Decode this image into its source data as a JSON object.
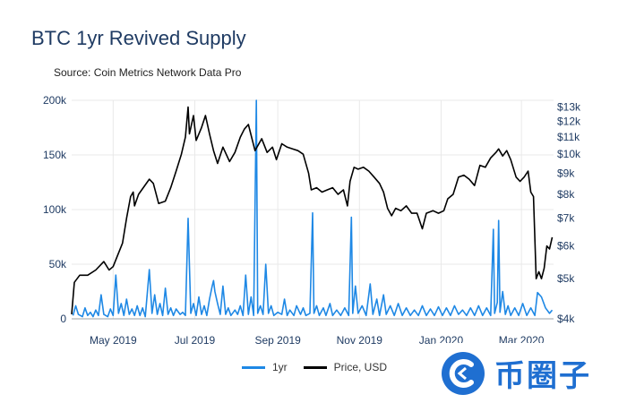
{
  "header": {
    "title": "BTC 1yr Revived Supply",
    "subtitle": "Source: Coin Metrics Network Data Pro"
  },
  "colors": {
    "supply": "#1e88e5",
    "price": "#000000",
    "grid": "#e9e9e9",
    "axis_text": "#1f3b63"
  },
  "watermark": {
    "text": "币圈子",
    "icon": "c-swirl-logo-icon"
  },
  "chart_data": {
    "type": "line",
    "title": "BTC 1yr Revived Supply",
    "x_ticks": [
      "May 2019",
      "Jul 2019",
      "Sep 2019",
      "Nov 2019",
      "Jan 2020",
      "Mar 2020"
    ],
    "x_range": [
      "2019-03-31",
      "2020-03-25"
    ],
    "y_left": {
      "ticks": [
        0,
        50000,
        100000,
        150000,
        200000
      ],
      "tick_labels": [
        "0",
        "50k",
        "100k",
        "150k",
        "200k"
      ],
      "range": [
        0,
        200000
      ]
    },
    "y_right": {
      "scale": "log",
      "ticks": [
        4000,
        5000,
        6000,
        7000,
        8000,
        9000,
        10000,
        11000,
        12000,
        13000
      ],
      "tick_labels": [
        "$4k",
        "$5k",
        "$6k",
        "$7k",
        "$8k",
        "$9k",
        "$10k",
        "$11k",
        "$12k",
        "$13k"
      ],
      "range": [
        4000,
        13500
      ]
    },
    "legend": "bottom",
    "series": [
      {
        "name": "1yr",
        "axis": "left",
        "color": "#1e88e5",
        "points": [
          [
            "2019-04-01",
            3000
          ],
          [
            "2019-04-03",
            12000
          ],
          [
            "2019-04-05",
            4000
          ],
          [
            "2019-04-08",
            2000
          ],
          [
            "2019-04-10",
            10000
          ],
          [
            "2019-04-12",
            3000
          ],
          [
            "2019-04-14",
            6000
          ],
          [
            "2019-04-16",
            2000
          ],
          [
            "2019-04-18",
            8000
          ],
          [
            "2019-04-20",
            3000
          ],
          [
            "2019-04-22",
            22000
          ],
          [
            "2019-04-24",
            4000
          ],
          [
            "2019-04-27",
            2000
          ],
          [
            "2019-04-29",
            9000
          ],
          [
            "2019-05-01",
            3000
          ],
          [
            "2019-05-03",
            40000
          ],
          [
            "2019-05-05",
            5000
          ],
          [
            "2019-05-07",
            14000
          ],
          [
            "2019-05-09",
            3000
          ],
          [
            "2019-05-11",
            18000
          ],
          [
            "2019-05-13",
            4000
          ],
          [
            "2019-05-15",
            9000
          ],
          [
            "2019-05-17",
            3000
          ],
          [
            "2019-05-19",
            12000
          ],
          [
            "2019-05-21",
            3000
          ],
          [
            "2019-05-23",
            10000
          ],
          [
            "2019-05-25",
            2000
          ],
          [
            "2019-05-28",
            45000
          ],
          [
            "2019-05-30",
            5000
          ],
          [
            "2019-06-01",
            22000
          ],
          [
            "2019-06-03",
            4000
          ],
          [
            "2019-06-05",
            14000
          ],
          [
            "2019-06-07",
            3000
          ],
          [
            "2019-06-09",
            28000
          ],
          [
            "2019-06-11",
            4000
          ],
          [
            "2019-06-13",
            10000
          ],
          [
            "2019-06-15",
            3000
          ],
          [
            "2019-06-17",
            9000
          ],
          [
            "2019-06-20",
            4000
          ],
          [
            "2019-06-22",
            6000
          ],
          [
            "2019-06-24",
            3000
          ],
          [
            "2019-06-26",
            92000
          ],
          [
            "2019-06-28",
            5000
          ],
          [
            "2019-06-30",
            14000
          ],
          [
            "2019-07-02",
            3000
          ],
          [
            "2019-07-04",
            20000
          ],
          [
            "2019-07-06",
            4000
          ],
          [
            "2019-07-08",
            12000
          ],
          [
            "2019-07-10",
            3000
          ],
          [
            "2019-07-12",
            18000
          ],
          [
            "2019-07-14",
            30000
          ],
          [
            "2019-07-15",
            35000
          ],
          [
            "2019-07-16",
            25000
          ],
          [
            "2019-07-18",
            14000
          ],
          [
            "2019-07-20",
            4000
          ],
          [
            "2019-07-22",
            30000
          ],
          [
            "2019-07-24",
            4000
          ],
          [
            "2019-07-26",
            10000
          ],
          [
            "2019-07-28",
            3000
          ],
          [
            "2019-07-31",
            8000
          ],
          [
            "2019-08-02",
            4000
          ],
          [
            "2019-08-04",
            12000
          ],
          [
            "2019-08-06",
            3000
          ],
          [
            "2019-08-08",
            40000
          ],
          [
            "2019-08-10",
            4000
          ],
          [
            "2019-08-12",
            20000
          ],
          [
            "2019-08-14",
            3000
          ],
          [
            "2019-08-16",
            200000
          ],
          [
            "2019-08-17",
            5000
          ],
          [
            "2019-08-19",
            12000
          ],
          [
            "2019-08-21",
            4000
          ],
          [
            "2019-08-23",
            50000
          ],
          [
            "2019-08-25",
            5000
          ],
          [
            "2019-08-27",
            12000
          ],
          [
            "2019-08-29",
            3000
          ],
          [
            "2019-09-01",
            6000
          ],
          [
            "2019-09-04",
            4000
          ],
          [
            "2019-09-06",
            18000
          ],
          [
            "2019-09-08",
            3000
          ],
          [
            "2019-09-10",
            8000
          ],
          [
            "2019-09-13",
            3000
          ],
          [
            "2019-09-15",
            12000
          ],
          [
            "2019-09-18",
            4000
          ],
          [
            "2019-09-20",
            10000
          ],
          [
            "2019-09-22",
            3000
          ],
          [
            "2019-09-25",
            5000
          ],
          [
            "2019-09-27",
            97000
          ],
          [
            "2019-09-28",
            5000
          ],
          [
            "2019-09-30",
            12000
          ],
          [
            "2019-10-02",
            3000
          ],
          [
            "2019-10-05",
            10000
          ],
          [
            "2019-10-07",
            3000
          ],
          [
            "2019-10-10",
            14000
          ],
          [
            "2019-10-12",
            3000
          ],
          [
            "2019-10-15",
            8000
          ],
          [
            "2019-10-18",
            3000
          ],
          [
            "2019-10-21",
            10000
          ],
          [
            "2019-10-24",
            3000
          ],
          [
            "2019-10-26",
            93000
          ],
          [
            "2019-10-27",
            5000
          ],
          [
            "2019-10-29",
            30000
          ],
          [
            "2019-10-31",
            5000
          ],
          [
            "2019-11-03",
            12000
          ],
          [
            "2019-11-06",
            3000
          ],
          [
            "2019-11-09",
            32000
          ],
          [
            "2019-11-11",
            4000
          ],
          [
            "2019-11-14",
            18000
          ],
          [
            "2019-11-16",
            3000
          ],
          [
            "2019-11-19",
            22000
          ],
          [
            "2019-11-21",
            4000
          ],
          [
            "2019-11-24",
            12000
          ],
          [
            "2019-11-27",
            3000
          ],
          [
            "2019-11-30",
            14000
          ],
          [
            "2019-12-03",
            3000
          ],
          [
            "2019-12-06",
            10000
          ],
          [
            "2019-12-09",
            3000
          ],
          [
            "2019-12-12",
            8000
          ],
          [
            "2019-12-15",
            3000
          ],
          [
            "2019-12-18",
            12000
          ],
          [
            "2019-12-21",
            3000
          ],
          [
            "2019-12-24",
            9000
          ],
          [
            "2019-12-27",
            3000
          ],
          [
            "2019-12-30",
            11000
          ],
          [
            "2020-01-02",
            3000
          ],
          [
            "2020-01-05",
            10000
          ],
          [
            "2020-01-08",
            3000
          ],
          [
            "2020-01-11",
            12000
          ],
          [
            "2020-01-14",
            4000
          ],
          [
            "2020-01-17",
            8000
          ],
          [
            "2020-01-20",
            3000
          ],
          [
            "2020-01-23",
            10000
          ],
          [
            "2020-01-26",
            3000
          ],
          [
            "2020-01-29",
            12000
          ],
          [
            "2020-02-01",
            3000
          ],
          [
            "2020-02-04",
            10000
          ],
          [
            "2020-02-07",
            3000
          ],
          [
            "2020-02-09",
            82000
          ],
          [
            "2020-02-10",
            5000
          ],
          [
            "2020-02-12",
            15000
          ],
          [
            "2020-02-13",
            90000
          ],
          [
            "2020-02-14",
            6000
          ],
          [
            "2020-02-16",
            25000
          ],
          [
            "2020-02-18",
            4000
          ],
          [
            "2020-02-20",
            12000
          ],
          [
            "2020-02-22",
            3000
          ],
          [
            "2020-02-25",
            10000
          ],
          [
            "2020-02-28",
            3000
          ],
          [
            "2020-03-02",
            14000
          ],
          [
            "2020-03-05",
            3000
          ],
          [
            "2020-03-08",
            10000
          ],
          [
            "2020-03-11",
            3000
          ],
          [
            "2020-03-13",
            24000
          ],
          [
            "2020-03-16",
            20000
          ],
          [
            "2020-03-19",
            10000
          ],
          [
            "2020-03-22",
            5000
          ],
          [
            "2020-03-24",
            8000
          ]
        ]
      },
      {
        "name": "Price, USD",
        "axis": "right",
        "color": "#000000",
        "points": [
          [
            "2019-03-31",
            4100
          ],
          [
            "2019-04-02",
            4900
          ],
          [
            "2019-04-06",
            5100
          ],
          [
            "2019-04-12",
            5100
          ],
          [
            "2019-04-18",
            5250
          ],
          [
            "2019-04-24",
            5500
          ],
          [
            "2019-04-28",
            5250
          ],
          [
            "2019-05-01",
            5350
          ],
          [
            "2019-05-08",
            6100
          ],
          [
            "2019-05-11",
            7000
          ],
          [
            "2019-05-14",
            7900
          ],
          [
            "2019-05-16",
            8100
          ],
          [
            "2019-05-17",
            7500
          ],
          [
            "2019-05-20",
            8000
          ],
          [
            "2019-05-28",
            8700
          ],
          [
            "2019-05-31",
            8500
          ],
          [
            "2019-06-04",
            7600
          ],
          [
            "2019-06-09",
            7700
          ],
          [
            "2019-06-13",
            8300
          ],
          [
            "2019-06-17",
            9100
          ],
          [
            "2019-06-21",
            10000
          ],
          [
            "2019-06-24",
            11000
          ],
          [
            "2019-06-26",
            13000
          ],
          [
            "2019-06-27",
            11200
          ],
          [
            "2019-06-30",
            12400
          ],
          [
            "2019-07-02",
            10800
          ],
          [
            "2019-07-06",
            11600
          ],
          [
            "2019-07-09",
            12400
          ],
          [
            "2019-07-12",
            11200
          ],
          [
            "2019-07-15",
            10200
          ],
          [
            "2019-07-18",
            9500
          ],
          [
            "2019-07-22",
            10400
          ],
          [
            "2019-07-27",
            9600
          ],
          [
            "2019-07-31",
            10100
          ],
          [
            "2019-08-04",
            11000
          ],
          [
            "2019-08-07",
            11500
          ],
          [
            "2019-08-10",
            11800
          ],
          [
            "2019-08-13",
            10800
          ],
          [
            "2019-08-15",
            10200
          ],
          [
            "2019-08-20",
            10900
          ],
          [
            "2019-08-24",
            10100
          ],
          [
            "2019-08-28",
            10400
          ],
          [
            "2019-08-31",
            9700
          ],
          [
            "2019-09-04",
            10600
          ],
          [
            "2019-09-08",
            10400
          ],
          [
            "2019-09-12",
            10300
          ],
          [
            "2019-09-16",
            10200
          ],
          [
            "2019-09-20",
            10000
          ],
          [
            "2019-09-24",
            9000
          ],
          [
            "2019-09-26",
            8200
          ],
          [
            "2019-09-30",
            8300
          ],
          [
            "2019-10-04",
            8100
          ],
          [
            "2019-10-08",
            8200
          ],
          [
            "2019-10-12",
            8300
          ],
          [
            "2019-10-16",
            8000
          ],
          [
            "2019-10-20",
            8200
          ],
          [
            "2019-10-23",
            7500
          ],
          [
            "2019-10-25",
            8600
          ],
          [
            "2019-10-28",
            9300
          ],
          [
            "2019-10-31",
            9200
          ],
          [
            "2019-11-04",
            9300
          ],
          [
            "2019-11-08",
            9100
          ],
          [
            "2019-11-12",
            8800
          ],
          [
            "2019-11-16",
            8500
          ],
          [
            "2019-11-19",
            8100
          ],
          [
            "2019-11-22",
            7400
          ],
          [
            "2019-11-25",
            7100
          ],
          [
            "2019-11-28",
            7400
          ],
          [
            "2019-12-02",
            7300
          ],
          [
            "2019-12-06",
            7500
          ],
          [
            "2019-12-10",
            7200
          ],
          [
            "2019-12-14",
            7200
          ],
          [
            "2019-12-18",
            6600
          ],
          [
            "2019-12-21",
            7200
          ],
          [
            "2019-12-26",
            7300
          ],
          [
            "2019-12-30",
            7200
          ],
          [
            "2020-01-03",
            7300
          ],
          [
            "2020-01-06",
            7800
          ],
          [
            "2020-01-10",
            8000
          ],
          [
            "2020-01-14",
            8800
          ],
          [
            "2020-01-18",
            8900
          ],
          [
            "2020-01-22",
            8700
          ],
          [
            "2020-01-26",
            8400
          ],
          [
            "2020-01-30",
            9400
          ],
          [
            "2020-02-03",
            9300
          ],
          [
            "2020-02-07",
            9800
          ],
          [
            "2020-02-11",
            10100
          ],
          [
            "2020-02-13",
            10300
          ],
          [
            "2020-02-16",
            9900
          ],
          [
            "2020-02-19",
            10200
          ],
          [
            "2020-02-22",
            9700
          ],
          [
            "2020-02-26",
            8800
          ],
          [
            "2020-02-29",
            8600
          ],
          [
            "2020-03-03",
            8800
          ],
          [
            "2020-03-06",
            9100
          ],
          [
            "2020-03-08",
            8100
          ],
          [
            "2020-03-10",
            7900
          ],
          [
            "2020-03-12",
            5000
          ],
          [
            "2020-03-14",
            5200
          ],
          [
            "2020-03-16",
            5000
          ],
          [
            "2020-03-18",
            5300
          ],
          [
            "2020-03-20",
            6000
          ],
          [
            "2020-03-22",
            5900
          ],
          [
            "2020-03-24",
            6300
          ]
        ]
      }
    ]
  }
}
